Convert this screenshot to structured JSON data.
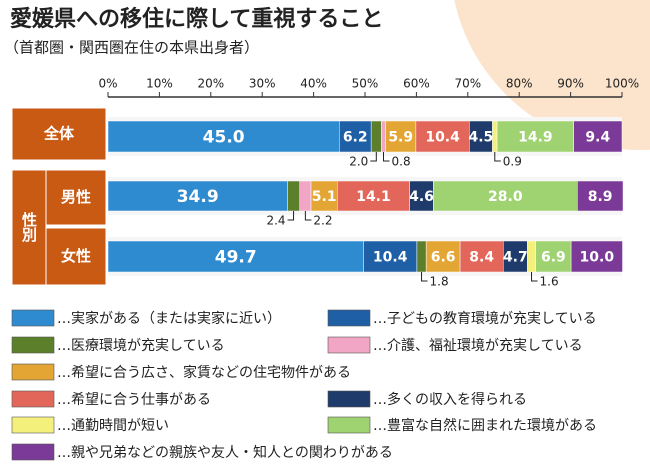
{
  "chart_data": {
    "type": "stacked_bar_100",
    "title": "愛媛県への移住に際して重視すること",
    "subtitle": "（首都圏・関西圏在住の本県出身者）",
    "categories": [
      "全体",
      "男性",
      "女性"
    ],
    "group_label": "性別",
    "xlim": [
      0,
      100
    ],
    "xticks": [
      {
        "value": 0,
        "label": "0%"
      },
      {
        "value": 10,
        "label": "10%"
      },
      {
        "value": 20,
        "label": "20%"
      },
      {
        "value": 30,
        "label": "30%"
      },
      {
        "value": 40,
        "label": "40%"
      },
      {
        "value": 50,
        "label": "50%"
      },
      {
        "value": 60,
        "label": "60%"
      },
      {
        "value": 70,
        "label": "70%"
      },
      {
        "value": 80,
        "label": "80%"
      },
      {
        "value": 90,
        "label": "90%"
      },
      {
        "value": 100,
        "label": "100%"
      }
    ],
    "series": [
      {
        "name": "…実家がある（または実家に近い）",
        "color": "#2e8bd0",
        "values": [
          45.0,
          34.9,
          49.7
        ],
        "value_labels": [
          "45.0",
          "34.9",
          "49.7"
        ]
      },
      {
        "name": "…子どもの教育環境が充実している",
        "color": "#1f5fa5",
        "values": [
          6.2,
          null,
          10.4
        ],
        "value_labels": [
          "6.2",
          null,
          "10.4"
        ]
      },
      {
        "name": "…医療環境が充実している",
        "color": "#5b7f2a",
        "values": [
          2.0,
          2.4,
          1.8
        ],
        "value_labels": [
          "2.0",
          "2.4",
          "1.8"
        ]
      },
      {
        "name": "…介護、福祉環境が充実している",
        "color": "#f2a6c6",
        "values": [
          0.8,
          2.2,
          null
        ],
        "value_labels": [
          "0.8",
          "2.2",
          null
        ]
      },
      {
        "name": "…希望に合う広さ、家賃などの住宅物件がある",
        "color": "#e3a533",
        "values": [
          5.9,
          5.1,
          6.6
        ],
        "value_labels": [
          "5.9",
          "5.1",
          "6.6"
        ]
      },
      {
        "name": "…希望に合う仕事がある",
        "color": "#e2675a",
        "values": [
          10.4,
          14.1,
          8.4
        ],
        "value_labels": [
          "10.4",
          "14.1",
          "8.4"
        ]
      },
      {
        "name": "…多くの収入を得られる",
        "color": "#1e3b6b",
        "values": [
          4.5,
          4.6,
          4.7
        ],
        "value_labels": [
          "4.5",
          "4.6",
          "4.7"
        ]
      },
      {
        "name": "…通勤時間が短い",
        "color": "#f3f07c",
        "values": [
          0.9,
          null,
          1.6
        ],
        "value_labels": [
          "0.9",
          null,
          "1.6"
        ]
      },
      {
        "name": "…豊富な自然に囲まれた環境がある",
        "color": "#9fd271",
        "values": [
          14.9,
          28.0,
          6.9
        ],
        "value_labels": [
          "14.9",
          "28.0",
          "6.9"
        ]
      },
      {
        "name": "…親や兄弟などの親族や友人・知人との関わりがある",
        "color": "#7b3a97",
        "values": [
          9.4,
          8.9,
          10.0
        ],
        "value_labels": [
          "9.4",
          "8.9",
          "10.0"
        ]
      }
    ]
  }
}
